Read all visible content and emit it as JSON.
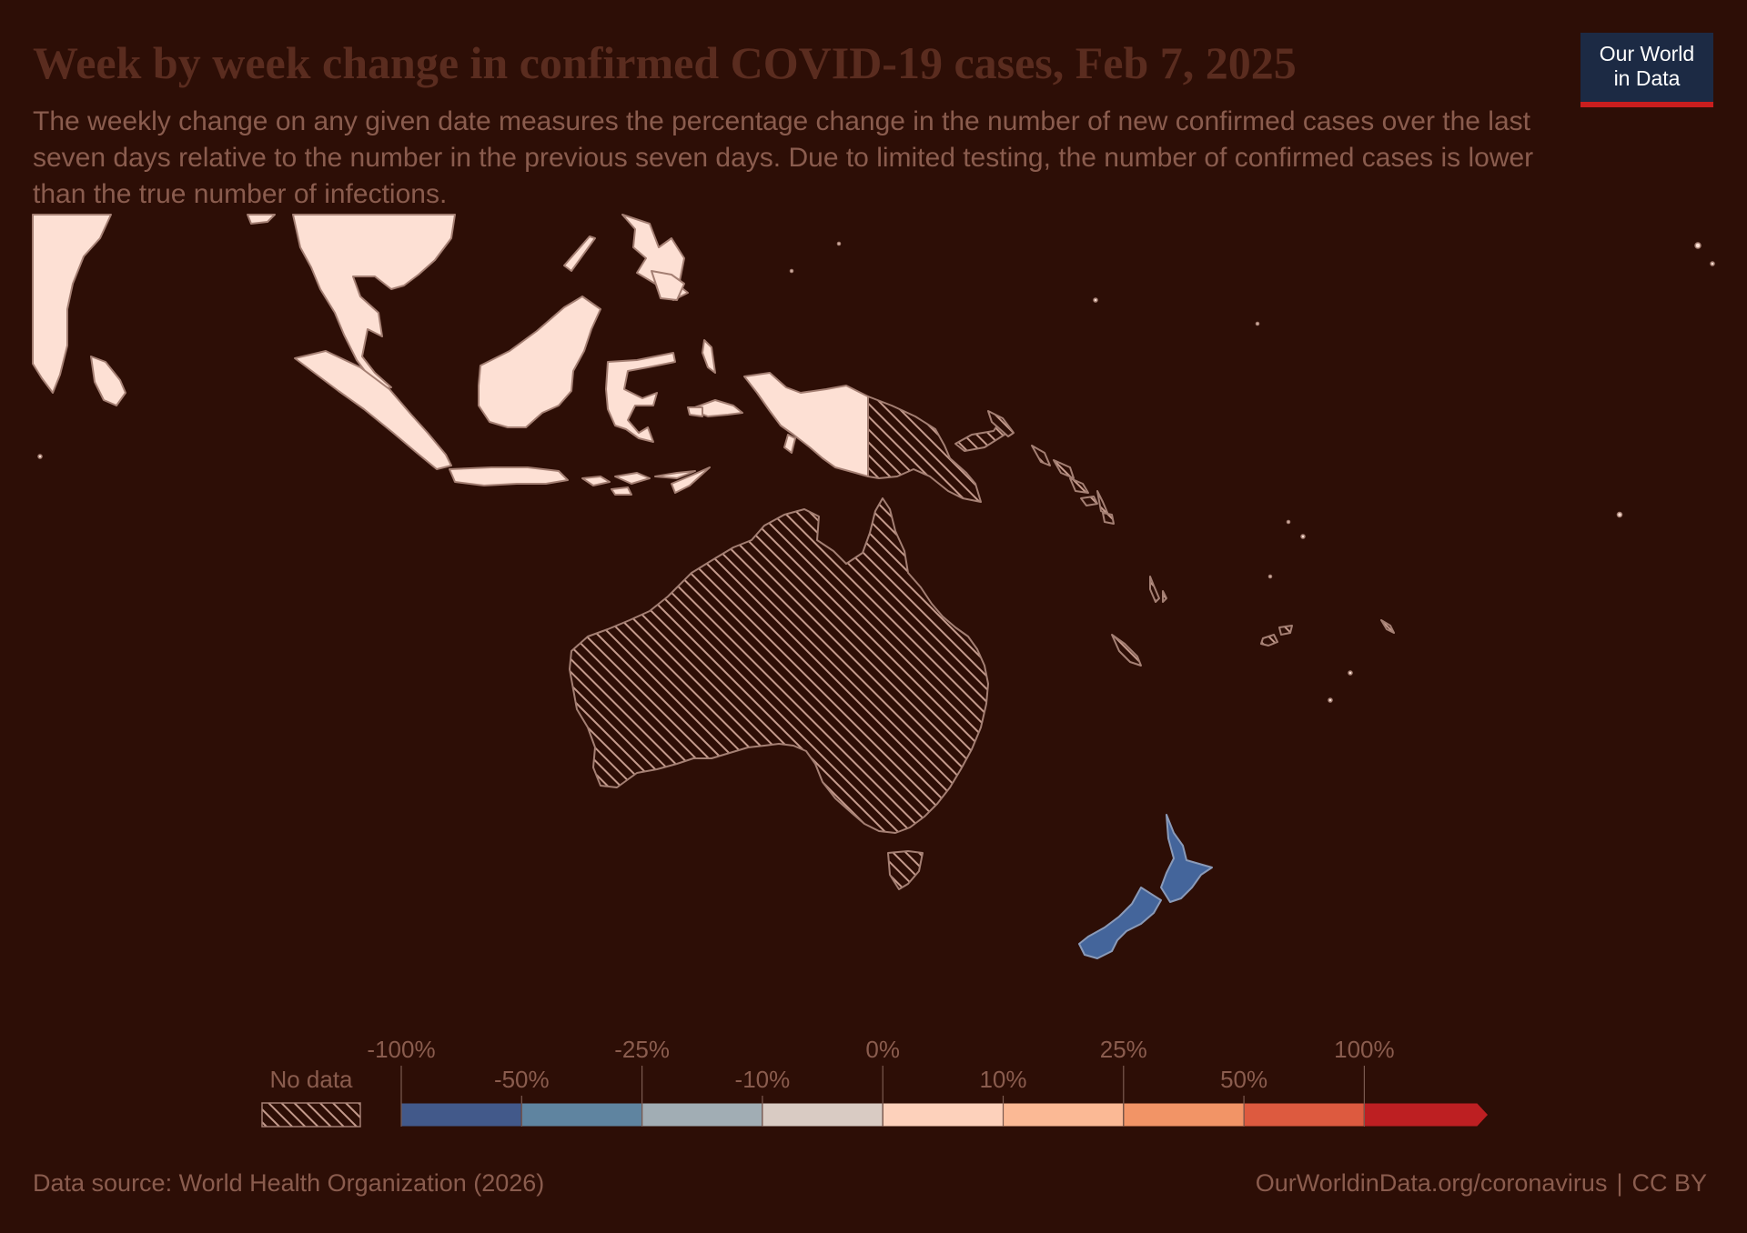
{
  "header": {
    "title": "Week by week change in confirmed COVID-19 cases, Feb 7, 2025",
    "subtitle": "The weekly change on any given date measures the percentage change in the number of new confirmed cases over the last seven days relative to the number in the previous seven days. Due to limited testing, the number of confirmed cases is lower than the true number of infections."
  },
  "logo": {
    "line1": "Our World",
    "line2": "in Data"
  },
  "colors": {
    "background": "#2d0e06",
    "land_default": "#fde0d4",
    "no_data_hatch": "#c49a8c",
    "new_zealand": "#44659b",
    "logo_bg": "#1c2a44",
    "logo_accent": "#c91e1e"
  },
  "regions": [
    {
      "name": "New Zealand",
      "category": "-50% to -25%"
    },
    {
      "name": "Australia",
      "category": "No data"
    },
    {
      "name": "Papua New Guinea",
      "category": "No data"
    },
    {
      "name": "Solomon Islands",
      "category": "No data"
    },
    {
      "name": "Vanuatu",
      "category": "No data"
    },
    {
      "name": "Fiji",
      "category": "No data"
    }
  ],
  "legend": {
    "no_data_label": "No data",
    "top_labels": [
      "-100%",
      "-25%",
      "0%",
      "25%",
      "100%"
    ],
    "bottom_labels": [
      "-50%",
      "-10%",
      "10%",
      "50%"
    ],
    "bins": [
      {
        "from": "-100%",
        "to": "-50%",
        "color": "#42598a"
      },
      {
        "from": "-50%",
        "to": "-25%",
        "color": "#5f84a0"
      },
      {
        "from": "-25%",
        "to": "-10%",
        "color": "#a1adb4"
      },
      {
        "from": "-10%",
        "to": "0%",
        "color": "#d9cbc3"
      },
      {
        "from": "0%",
        "to": "10%",
        "color": "#fdd1bb"
      },
      {
        "from": "10%",
        "to": "25%",
        "color": "#fbb995"
      },
      {
        "from": "25%",
        "to": "50%",
        "color": "#f29466"
      },
      {
        "from": "50%",
        "to": "100%",
        "color": "#dd5a3f"
      },
      {
        "from": "100%",
        "to": "",
        "color": "#bd1f22"
      }
    ]
  },
  "footer": {
    "source": "Data source: World Health Organization (2026)",
    "url": "OurWorldinData.org/coronavirus",
    "license": "CC BY"
  }
}
